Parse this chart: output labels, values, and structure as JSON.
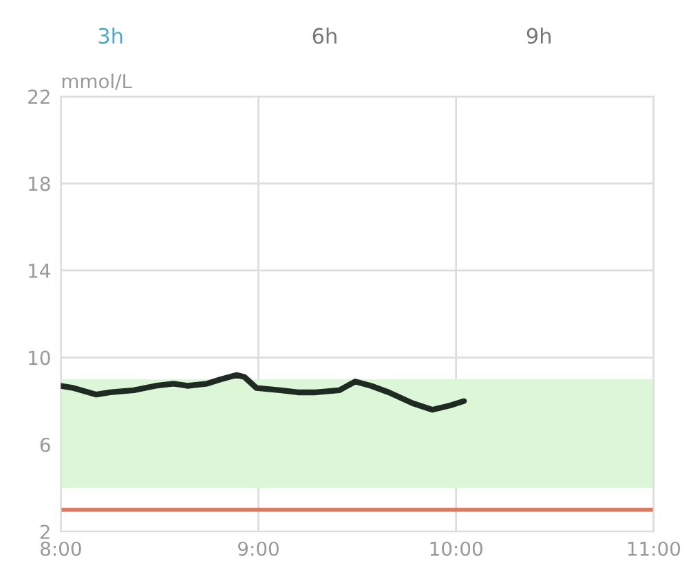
{
  "chart_data": {
    "type": "line",
    "ylabel": "mmol/L",
    "annotations": [
      "3h",
      "6h",
      "9h"
    ],
    "x": [
      8.0,
      8.065,
      8.18,
      8.25,
      8.37,
      8.48,
      8.57,
      8.64,
      8.74,
      8.81,
      8.89,
      8.93,
      8.99,
      9.11,
      9.2,
      9.29,
      9.41,
      9.49,
      9.57,
      9.66,
      9.78,
      9.88,
      9.97,
      10.04
    ],
    "series": [
      {
        "color": "#1f2a22",
        "values": [
          8.7,
          8.6,
          8.3,
          8.4,
          8.5,
          8.7,
          8.8,
          8.7,
          8.8,
          9.0,
          9.2,
          9.1,
          8.6,
          8.5,
          8.4,
          8.4,
          8.5,
          8.9,
          8.7,
          8.4,
          7.9,
          7.6,
          7.8,
          8.0
        ]
      }
    ],
    "xlim": [
      8,
      11
    ],
    "xticks": [
      {
        "value": 8,
        "label": "8:00"
      },
      {
        "value": 9,
        "label": "9:00"
      },
      {
        "value": 10,
        "label": "10:00"
      },
      {
        "value": 11,
        "label": "11:00"
      }
    ],
    "ylim": [
      2,
      22
    ],
    "yticks": [
      2,
      6,
      10,
      14,
      18,
      22
    ],
    "bands": [
      {
        "axis": "y",
        "from": 4,
        "to": 9,
        "color": "#dcf6d8"
      }
    ],
    "ref_lines": [
      {
        "axis": "y",
        "value": 3,
        "color": "#e07a5f"
      }
    ],
    "grid": true,
    "marker": "none",
    "line_style": "solid"
  }
}
